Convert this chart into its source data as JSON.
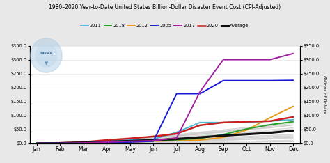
{
  "title": "1980–2020 Year-to-Date United States Billion-Dollar Disaster Event Cost (CPI-Adjusted)",
  "months": [
    "Jan",
    "Feb",
    "Mar",
    "Apr",
    "May",
    "Jun",
    "Jul",
    "Aug",
    "Sep",
    "Oct",
    "Nov",
    "Dec"
  ],
  "ylim": [
    0,
    350
  ],
  "yticks": [
    0,
    50,
    100,
    150,
    200,
    250,
    300,
    350
  ],
  "background_color": "#e8e8e8",
  "plot_bg": "#ffffff",
  "legend_entries": [
    "2011",
    "2018",
    "2012",
    "2005",
    "2017",
    "2020",
    "Average"
  ],
  "legend_colors": [
    "#4ab8d8",
    "#28a028",
    "#e89818",
    "#1818d8",
    "#a020a0",
    "#c82020",
    "#101010"
  ],
  "series": {
    "2011": [
      0.2,
      0.5,
      5,
      10,
      12,
      15,
      40,
      75,
      75,
      76,
      80,
      85
    ],
    "2018": [
      0.2,
      0.5,
      2,
      5,
      8,
      10,
      13,
      18,
      32,
      52,
      67,
      78
    ],
    "2012": [
      0.2,
      0.5,
      2,
      3,
      5,
      8,
      10,
      12,
      22,
      48,
      92,
      133
    ],
    "2005": [
      0.2,
      0.5,
      0.5,
      2,
      5,
      8,
      178,
      178,
      225,
      225,
      225,
      226
    ],
    "2017": [
      0.2,
      0.5,
      2,
      5,
      8,
      10,
      20,
      185,
      300,
      300,
      300,
      322
    ],
    "2020": [
      0.2,
      2,
      5,
      12,
      18,
      25,
      35,
      65,
      75,
      78,
      80,
      95
    ],
    "Average": [
      0.2,
      1,
      3,
      6,
      9,
      12,
      16,
      22,
      28,
      33,
      38,
      46
    ]
  },
  "series_colors": {
    "2011": "#4ab8d8",
    "2018": "#28a028",
    "2012": "#e89818",
    "2005": "#1818d8",
    "2017": "#a020a0",
    "2020": "#c82020",
    "Average": "#101010"
  },
  "series_widths": {
    "2011": 1.4,
    "2018": 1.4,
    "2012": 1.4,
    "2005": 1.4,
    "2017": 1.4,
    "2020": 1.8,
    "Average": 2.2
  },
  "num_background_lines": 36,
  "bg_line_color": "#c8c8c8",
  "bg_line_alpha": 0.7
}
